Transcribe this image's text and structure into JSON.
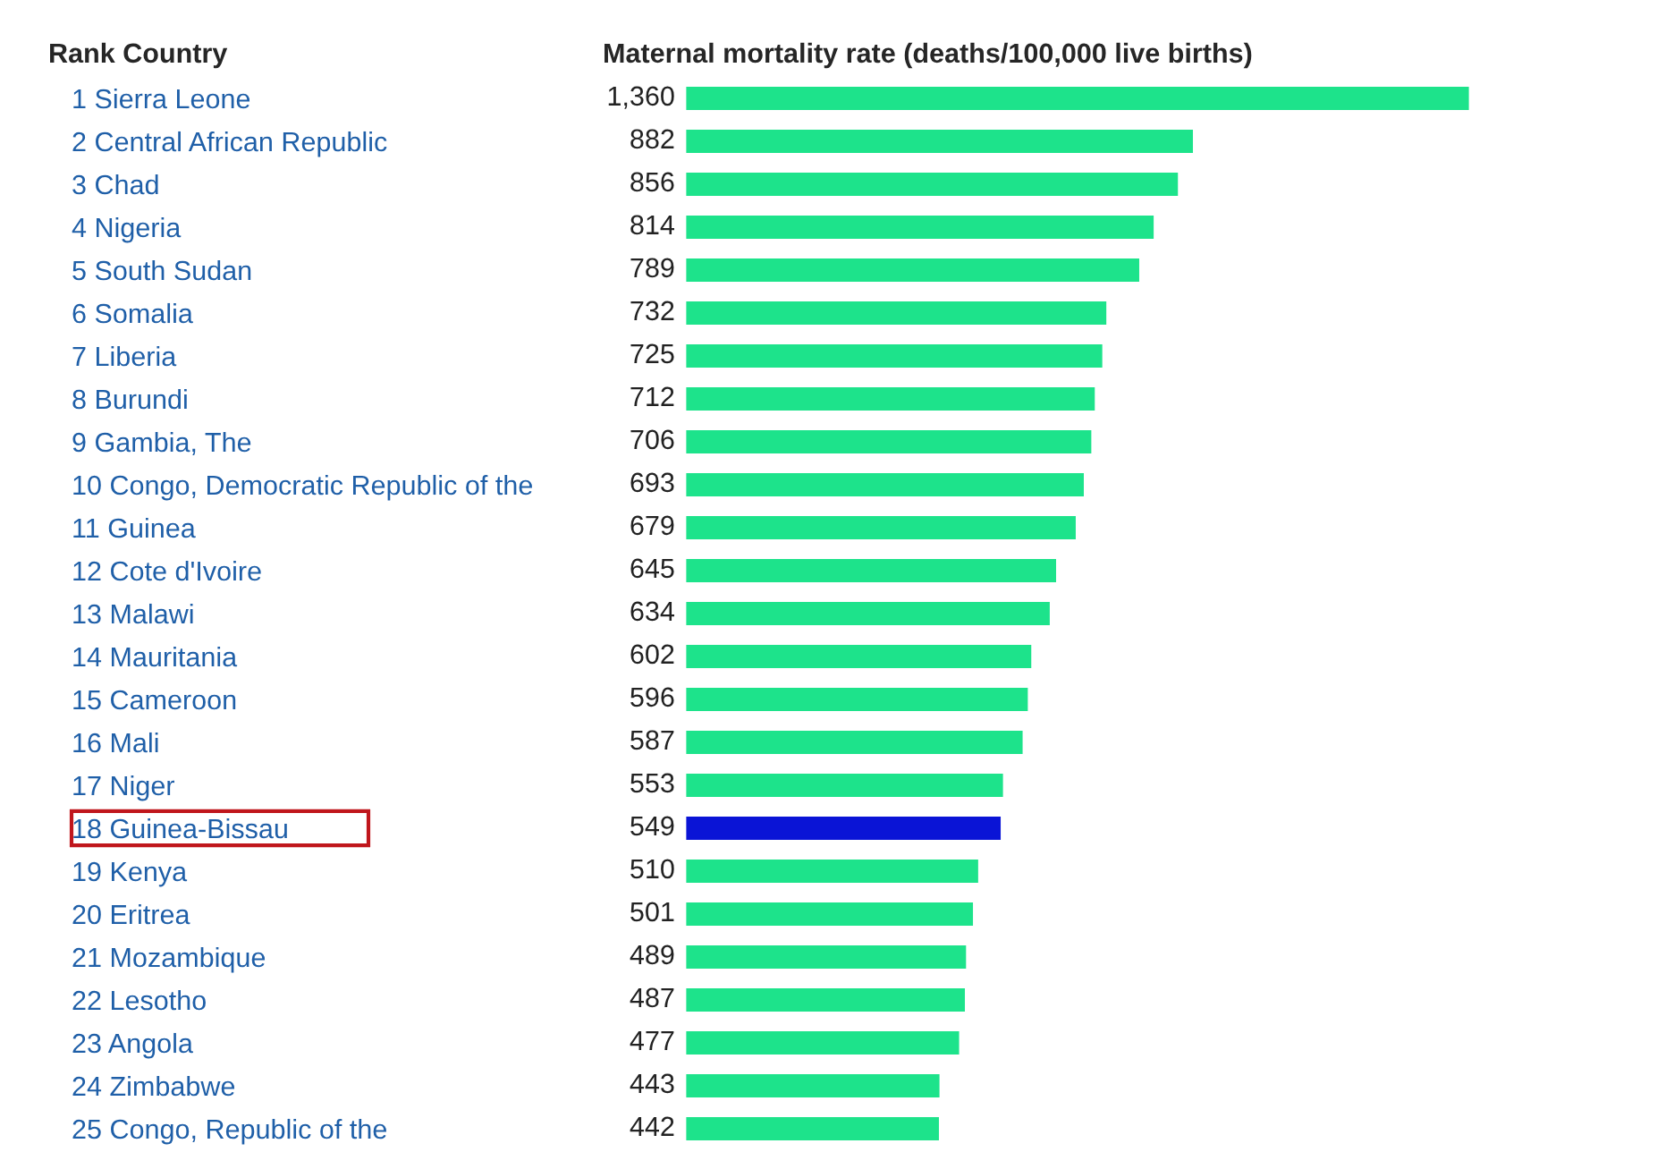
{
  "chart_data": {
    "type": "bar",
    "orientation": "horizontal",
    "title": "Maternal mortality rate (deaths/100,000 live births)",
    "ylabel": "Rank Country",
    "categories": [
      "1 Sierra Leone",
      "2 Central African Republic",
      "3 Chad",
      "4 Nigeria",
      "5 South Sudan",
      "6 Somalia",
      "7 Liberia",
      "8 Burundi",
      "9 Gambia, The",
      "10 Congo, Democratic Republic of the",
      "11 Guinea",
      "12 Cote d'Ivoire",
      "13 Malawi",
      "14 Mauritania",
      "15 Cameroon",
      "16 Mali",
      "17 Niger",
      "18 Guinea-Bissau",
      "19 Kenya",
      "20 Eritrea",
      "21 Mozambique",
      "22 Lesotho",
      "23 Angola",
      "24 Zimbabwe",
      "25 Congo, Republic of the"
    ],
    "values": [
      1360,
      882,
      856,
      814,
      789,
      732,
      725,
      712,
      706,
      693,
      679,
      645,
      634,
      602,
      596,
      587,
      553,
      549,
      510,
      501,
      489,
      487,
      477,
      443,
      442
    ],
    "value_labels": [
      "1,360",
      "882",
      "856",
      "814",
      "789",
      "732",
      "725",
      "712",
      "706",
      "693",
      "679",
      "645",
      "634",
      "602",
      "596",
      "587",
      "553",
      "549",
      "510",
      "501",
      "489",
      "487",
      "477",
      "443",
      "442"
    ],
    "colors": [
      "#1de38b",
      "#1de38b",
      "#1de38b",
      "#1de38b",
      "#1de38b",
      "#1de38b",
      "#1de38b",
      "#1de38b",
      "#1de38b",
      "#1de38b",
      "#1de38b",
      "#1de38b",
      "#1de38b",
      "#1de38b",
      "#1de38b",
      "#1de38b",
      "#1de38b",
      "#0a14d6",
      "#1de38b",
      "#1de38b",
      "#1de38b",
      "#1de38b",
      "#1de38b",
      "#1de38b",
      "#1de38b"
    ],
    "tick_labels": "y",
    "grid": false,
    "legend": false
  }
}
